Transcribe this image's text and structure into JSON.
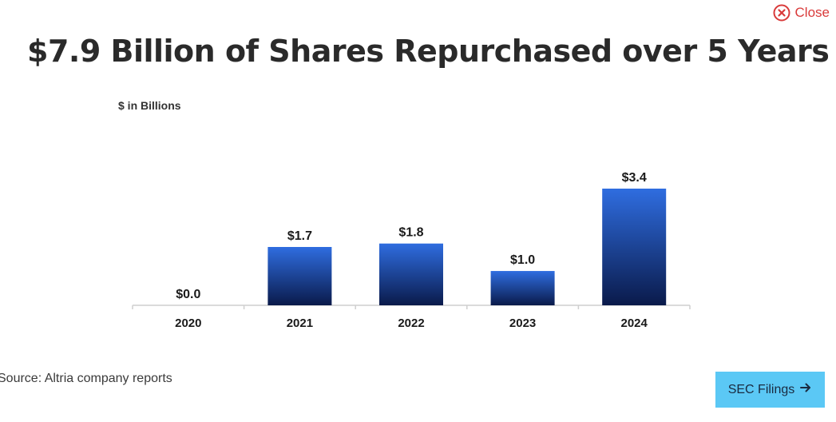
{
  "close": {
    "label": "Close",
    "icon": "close-circle-icon",
    "color": "#d93a3a"
  },
  "title": "$7.9 Billion of Shares Repurchased over 5 Years",
  "source": "Source: Altria company reports",
  "sec_button": {
    "label": "SEC Filings",
    "icon": "arrow-right-icon",
    "color": "#5bc8f5"
  },
  "chart_data": {
    "type": "bar",
    "title": "$7.9 Billion of Shares Repurchased over 5 Years",
    "ylabel": "$ in Billions",
    "xlabel": "",
    "categories": [
      "2020",
      "2021",
      "2022",
      "2023",
      "2024"
    ],
    "values": [
      0.0,
      1.7,
      1.8,
      1.0,
      3.4
    ],
    "data_labels": [
      "$0.0",
      "$1.7",
      "$1.8",
      "$1.0",
      "$3.4"
    ],
    "ylim": [
      0,
      3.4
    ],
    "grid": false,
    "legend": "none",
    "bar_color_top": "#2f6de0",
    "bar_color_bottom": "#0a1a4a"
  }
}
